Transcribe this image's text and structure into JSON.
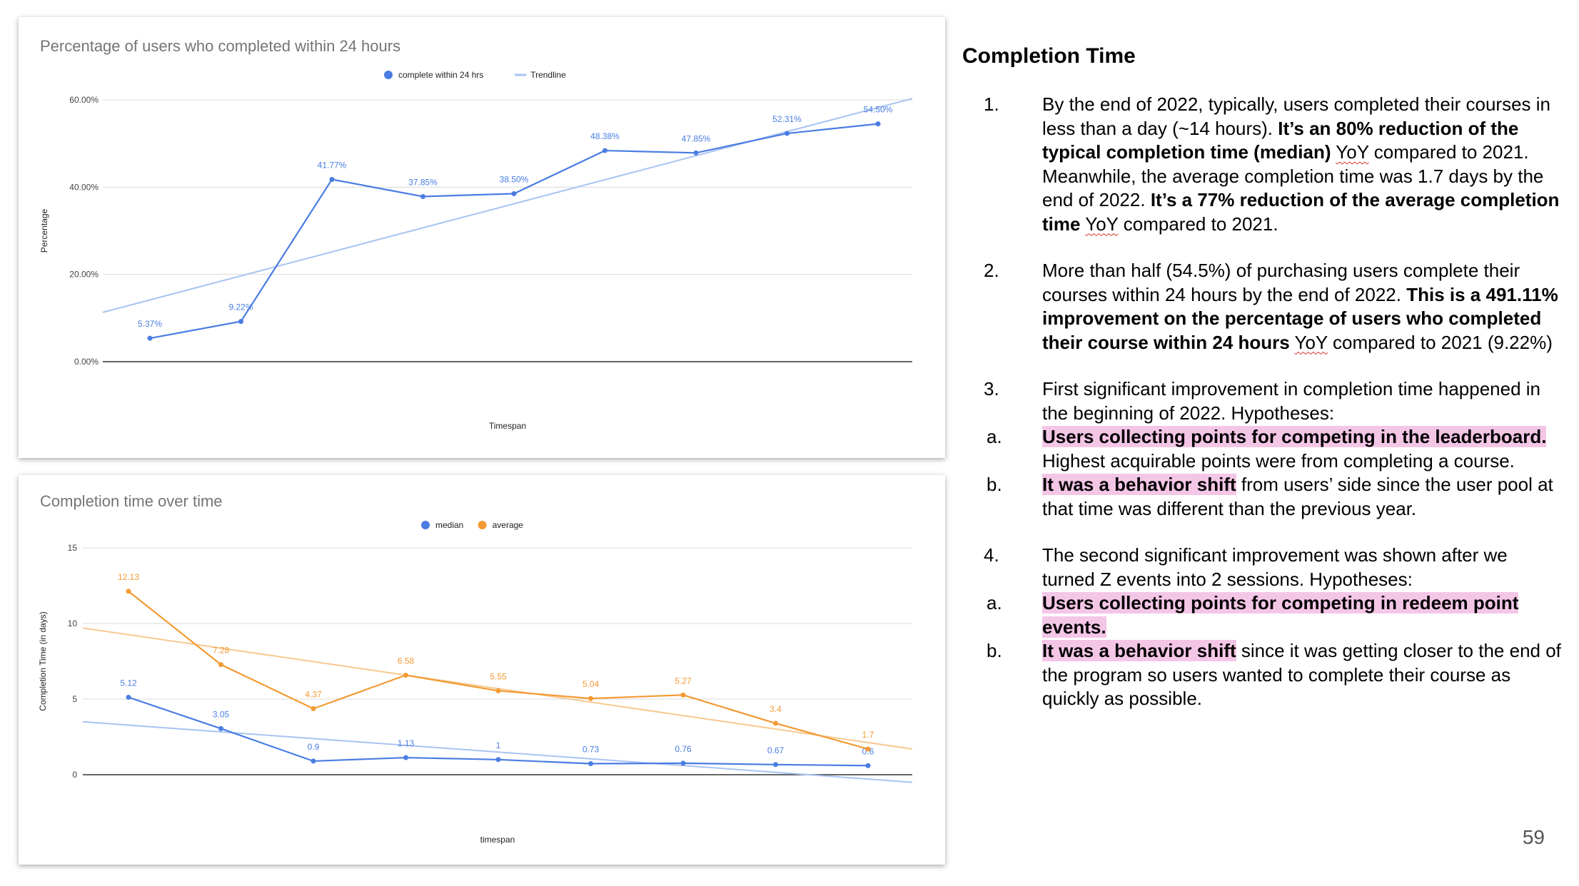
{
  "charts": [
    {
      "title": "Percentage of users who completed within 24 hours",
      "legend": [
        "complete within 24 hrs",
        "Trendline"
      ],
      "ylabel": "Percentage",
      "xlabel": "Timespan",
      "yticks": [
        "60.00%",
        "40.00%",
        "20.00%",
        "0.00%"
      ]
    },
    {
      "title": "Completion time over time",
      "legend": [
        "median",
        "average"
      ],
      "ylabel": "Completion Time (in days)",
      "xlabel": "timespan",
      "yticks": [
        "15",
        "10",
        "5",
        "0"
      ]
    }
  ],
  "chart_data": [
    {
      "type": "line",
      "title": "Percentage of users who completed within 24 hours",
      "xlabel": "Timespan",
      "ylabel": "Percentage",
      "ylim": [
        0,
        60
      ],
      "grid": true,
      "legend_position": "top",
      "series": [
        {
          "name": "complete within 24 hrs",
          "color": "#4a7de2",
          "values": [
            5.37,
            9.22,
            41.77,
            37.85,
            38.5,
            48.38,
            47.85,
            52.31,
            54.5
          ],
          "labels": [
            "5.37%",
            "9.22%",
            "41.77%",
            "37.85%",
            "38.50%",
            "48.38%",
            "47.85%",
            "52.31%",
            "54.50%"
          ]
        },
        {
          "name": "Trendline",
          "color": "#a9c3f2",
          "trend": [
            11.3,
            60.3
          ]
        }
      ]
    },
    {
      "type": "line",
      "title": "Completion time over time",
      "xlabel": "timespan",
      "ylabel": "Completion Time (in days)",
      "ylim": [
        0,
        15
      ],
      "grid": true,
      "legend_position": "top",
      "series": [
        {
          "name": "median",
          "color": "#4a7de2",
          "values": [
            5.12,
            3.05,
            0.9,
            1.13,
            1,
            0.73,
            0.76,
            0.67,
            0.6
          ],
          "labels": [
            "5.12",
            "3.05",
            "0.9",
            "1.13",
            "1",
            "0.73",
            "0.76",
            "0.67",
            "0.6"
          ],
          "trend": [
            3.5,
            -0.5
          ]
        },
        {
          "name": "average",
          "color": "#f39a34",
          "values": [
            12.13,
            7.28,
            4.37,
            6.58,
            5.55,
            5.04,
            5.27,
            3.4,
            1.7
          ],
          "labels": [
            "12.13",
            "7.28",
            "4.37",
            "6.58",
            "5.55",
            "5.04",
            "5.27",
            "3.4",
            "1.7"
          ],
          "trend": [
            9.7,
            1.7
          ]
        }
      ]
    }
  ],
  "text": {
    "heading": "Completion Time",
    "p1": {
      "num": "1.",
      "t1": "By the end of 2022, typically, users completed their courses in less than a day (~14 hours). ",
      "b1": "It’s an 80% reduction of the typical completion time (median)",
      "yoy1": "YoY",
      "t2": " compared to 2021. Meanwhile, the average completion time was 1.7 days by the end of 2022. ",
      "b2": "It’s a 77% reduction of the average completion time",
      "yoy2": "YoY",
      "t3": "compared to 2021."
    },
    "p2": {
      "num": "2.",
      "t1": "More than half (54.5%) of purchasing users complete their courses within 24 hours by the end of 2022. ",
      "b1": "This is a 491.11% improvement on the percentage of users who completed their course within 24 hours",
      "yoy": "YoY",
      "t2": " compared to 2021 (9.22%)"
    },
    "p3": {
      "num": "3.",
      "t1": "First significant improvement in completion time happened in the beginning of 2022. Hypotheses:",
      "a": {
        "l": "a.",
        "hl": "Users collecting points for competing in the leaderboard.",
        "t": " Highest acquirable points were from completing a course."
      },
      "b": {
        "l": "b.",
        "hl": "It was a behavior shift",
        "t": " from users’ side since the user pool at that time was different than the previous year."
      }
    },
    "p4": {
      "num": "4.",
      "t1": "The second significant improvement was shown after we turned Z events into 2 sessions. Hypotheses:",
      "a": {
        "l": "a.",
        "hl": "Users collecting points for competing in redeem point events."
      },
      "b": {
        "l": "b.",
        "hl": "It was a behavior shift",
        "t": " since it was getting closer to the end of the program so users wanted to complete their course as quickly as possible."
      }
    },
    "page": "59"
  }
}
